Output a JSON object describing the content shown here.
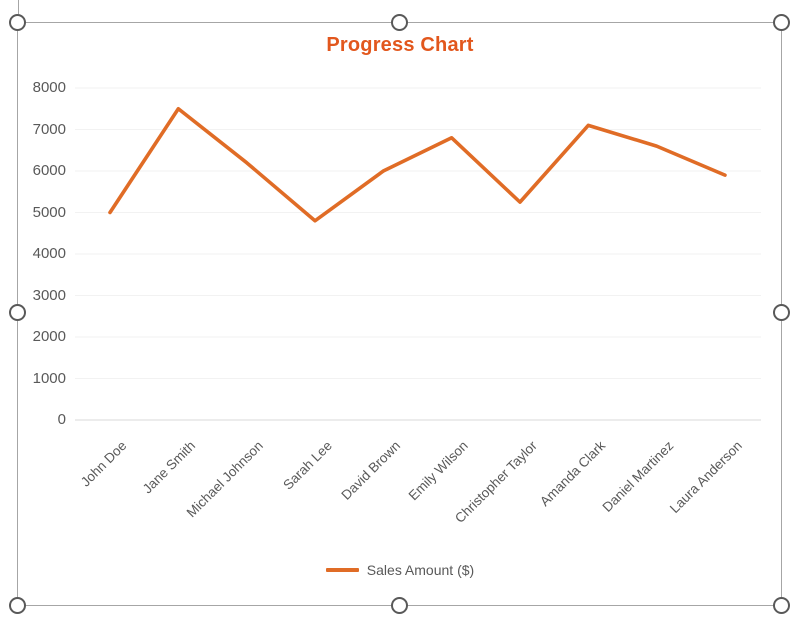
{
  "chart_data": {
    "type": "line",
    "title": "Progress Chart",
    "categories": [
      "John Doe",
      "Jane Smith",
      "Michael Johnson",
      "Sarah Lee",
      "David Brown",
      "Emily Wilson",
      "Christopher Taylor",
      "Amanda Clark",
      "Daniel Martinez",
      "Laura Anderson"
    ],
    "series": [
      {
        "name": "Sales Amount ($)",
        "values": [
          5000,
          7500,
          6200,
          4800,
          6000,
          6800,
          5250,
          7100,
          6600,
          5900
        ]
      }
    ],
    "xlabel": "",
    "ylabel": "",
    "ylim": [
      0,
      8000
    ],
    "ytick_step": 1000,
    "ytick_labels": [
      "0",
      "1000",
      "2000",
      "3000",
      "4000",
      "5000",
      "6000",
      "7000",
      "8000"
    ],
    "grid": true,
    "legend_position": "bottom",
    "colors": {
      "series": "#E06C26",
      "title": "#E2571D",
      "axis_text": "#595959",
      "gridline": "#F2F2F2",
      "axis_line": "#D9D9D9",
      "selection_border": "#A6A6A6",
      "handle_stroke": "#595959"
    }
  },
  "selection": {
    "handles": [
      "top-left",
      "top-middle",
      "top-right",
      "middle-left",
      "middle-right",
      "bottom-left",
      "bottom-middle",
      "bottom-right"
    ]
  }
}
